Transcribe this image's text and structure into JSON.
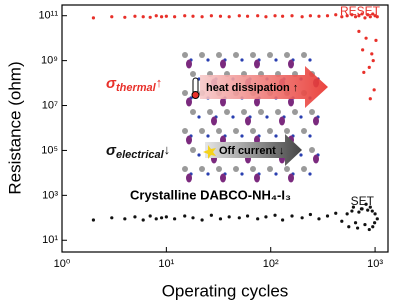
{
  "chart_data": {
    "type": "scatter",
    "xlabel": "Operating cycles",
    "ylabel": "Resistance (ohm)",
    "log_x": true,
    "log_y": true,
    "xlim": [
      1,
      1330
    ],
    "ylim": [
      3,
      300000000000
    ],
    "xticks": [
      {
        "value": 1,
        "label": "10⁰"
      },
      {
        "value": 10,
        "label": "10¹"
      },
      {
        "value": 100,
        "label": "10²"
      },
      {
        "value": 1000,
        "label": "10³"
      }
    ],
    "yticks": [
      {
        "value": 10,
        "label": "10¹"
      },
      {
        "value": 1000,
        "label": "10³"
      },
      {
        "value": 100000,
        "label": "10⁵"
      },
      {
        "value": 10000000,
        "label": "10⁷"
      },
      {
        "value": 1000000000,
        "label": "10⁹"
      },
      {
        "value": 100000000000,
        "label": "10¹¹"
      }
    ],
    "series": [
      {
        "name": "RESET",
        "color": "#e8302a",
        "x": [
          2,
          3,
          4,
          5,
          6,
          7,
          8,
          9,
          10,
          12,
          15,
          18,
          22,
          27,
          33,
          40,
          50,
          60,
          75,
          90,
          110,
          130,
          160,
          200,
          240,
          290,
          350,
          420,
          480,
          540,
          600,
          650,
          700,
          750,
          800,
          850,
          900,
          950,
          1000,
          1050,
          700,
          760,
          820,
          880,
          930,
          980,
          1020,
          780,
          900,
          960
        ],
        "values": [
          80000000000,
          90000000000,
          85000000000,
          95000000000,
          90000000000,
          85000000000,
          100000000000,
          90000000000,
          95000000000,
          90000000000,
          100000000000,
          95000000000,
          90000000000,
          100000000000,
          95000000000,
          90000000000,
          100000000000,
          95000000000,
          100000000000,
          90000000000,
          100000000000,
          95000000000,
          100000000000,
          90000000000,
          100000000000,
          95000000000,
          100000000000,
          110000000000,
          90000000000,
          100000000000,
          110000000000,
          90000000000,
          100000000000,
          120000000000,
          80000000000,
          110000000000,
          90000000000,
          120000000000,
          100000000000,
          90000000000,
          20000000000,
          3000000000,
          10000000000,
          500000000,
          2000000000,
          50000000,
          8000000000,
          300000000,
          20000000,
          1000000000
        ]
      },
      {
        "name": "SET",
        "color": "#111111",
        "x": [
          2,
          3,
          4,
          5,
          6,
          7,
          8,
          9,
          10,
          12,
          15,
          18,
          22,
          27,
          33,
          40,
          50,
          60,
          75,
          90,
          110,
          130,
          160,
          200,
          240,
          290,
          350,
          420,
          480,
          540,
          600,
          650,
          700,
          750,
          800,
          850,
          900,
          950,
          1000,
          1050,
          560,
          620,
          680,
          740,
          820,
          880,
          940,
          990
        ],
        "values": [
          80,
          100,
          90,
          110,
          80,
          120,
          90,
          100,
          110,
          90,
          120,
          100,
          80,
          130,
          90,
          110,
          100,
          120,
          90,
          110,
          130,
          80,
          120,
          100,
          140,
          90,
          120,
          160,
          70,
          150,
          200,
          60,
          180,
          250,
          50,
          220,
          300,
          40,
          150,
          90,
          40,
          300,
          35,
          250,
          400,
          30,
          200,
          60
        ]
      }
    ],
    "annotations": {
      "thermal": {
        "symbol": "σ",
        "sub": "thermal",
        "arrow": "↑"
      },
      "electrical": {
        "symbol": "σ",
        "sub": "electrical",
        "arrow": "↓"
      },
      "heat": "heat dissipation ↑",
      "off": "Off current ↓",
      "material": "Crystalline DABCO-NH₄-I₃"
    }
  }
}
